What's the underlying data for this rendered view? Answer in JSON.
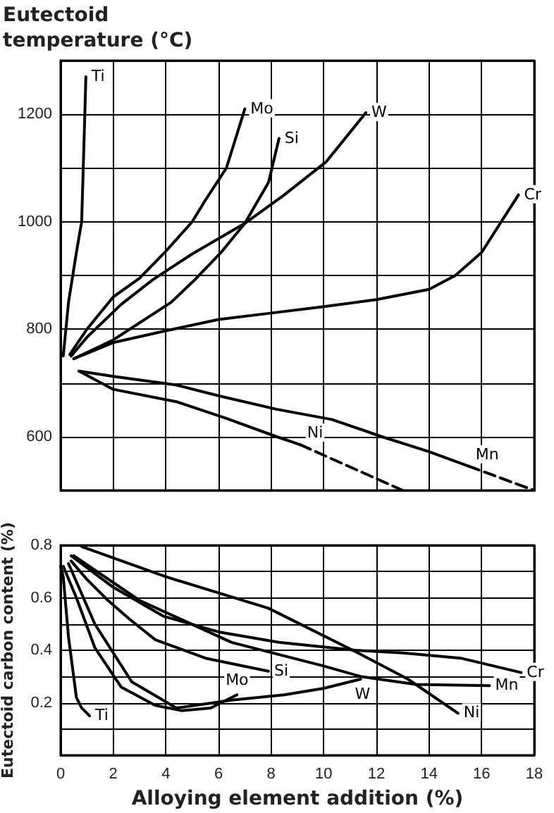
{
  "chart_data": [
    {
      "type": "line",
      "ylabel": "Eutectoid temperature (°C)",
      "xlim": [
        0,
        18
      ],
      "ylim": [
        500,
        1300
      ],
      "xticks": [
        0,
        2,
        4,
        6,
        8,
        10,
        12,
        14,
        16,
        18
      ],
      "yticks": [
        {
          "value": 500,
          "label": null
        },
        600,
        {
          "value": 700,
          "label": null
        },
        800,
        {
          "value": 900,
          "label": null
        },
        1000,
        {
          "value": 1100,
          "label": null
        },
        1200,
        {
          "value": 1300,
          "label": null
        }
      ],
      "grid": true,
      "tick_labels": "y",
      "marker": "none",
      "series": [
        {
          "name": "Ti",
          "color": "#000000",
          "x": [
            0.1,
            0.3,
            0.6,
            0.8,
            0.92,
            0.96
          ],
          "values": [
            750,
            850,
            943,
            1000,
            1200,
            1270
          ]
        },
        {
          "name": "Mo",
          "color": "#000000",
          "x": [
            0.35,
            1,
            2,
            3,
            4,
            5,
            5.5,
            6.3,
            7
          ],
          "values": [
            753,
            800,
            860,
            895,
            945,
            1000,
            1040,
            1100,
            1210
          ]
        },
        {
          "name": "Si",
          "color": "#000000",
          "x": [
            0.5,
            2,
            4.2,
            5.1,
            6.1,
            7,
            7.9,
            8.3
          ],
          "values": [
            745,
            780,
            850,
            892,
            943,
            997,
            1073,
            1155
          ]
        },
        {
          "name": "W",
          "color": "#000000",
          "x": [
            0.4,
            1,
            2.3,
            3.5,
            5,
            7,
            8.5,
            10.1,
            11.6
          ],
          "values": [
            750,
            785,
            846,
            892,
            940,
            997,
            1050,
            1112,
            1203
          ]
        },
        {
          "name": "Cr",
          "color": "#000000",
          "x": [
            0.5,
            2,
            4,
            6,
            8,
            10,
            12,
            14,
            15,
            16,
            17.4
          ],
          "values": [
            745,
            775,
            797,
            818,
            830,
            842,
            855,
            874,
            900,
            943,
            1050
          ]
        },
        {
          "name": "Mn",
          "color": "#000000",
          "x": [
            0.7,
            2,
            4.4,
            6,
            8.2,
            10.3,
            12.2,
            14,
            15.5
          ],
          "values": [
            722,
            712,
            696,
            676,
            651,
            632,
            600,
            572,
            545
          ]
        },
        {
          "color": "#000000",
          "line_style": "dashed",
          "x": [
            15.5,
            18
          ],
          "values": [
            545,
            500
          ]
        },
        {
          "name": "Ni",
          "color": "#000000",
          "x": [
            0.7,
            2,
            4.4,
            6.3,
            8.2,
            9.1
          ],
          "values": [
            722,
            688,
            665,
            634,
            600,
            585
          ]
        },
        {
          "color": "#000000",
          "line_style": "dashed",
          "x": [
            9.1,
            13
          ],
          "values": [
            585,
            500
          ]
        }
      ]
    },
    {
      "type": "line",
      "xlabel": "Alloying element addition (%)",
      "ylabel": "Eutectoid carbon content (%)",
      "xlim": [
        0,
        18
      ],
      "ylim": [
        0,
        0.8
      ],
      "xticks": [
        0,
        2,
        4,
        6,
        8,
        10,
        12,
        14,
        16,
        18
      ],
      "yticks": [
        {
          "value": 0,
          "label": null
        },
        {
          "value": 0.1,
          "label": null
        },
        0.2,
        {
          "value": 0.3,
          "label": null
        },
        0.4,
        {
          "value": 0.5,
          "label": null
        },
        0.6,
        {
          "value": 0.7,
          "label": null
        },
        0.8
      ],
      "grid": true,
      "marker": "none",
      "series": [
        {
          "name": "Ti",
          "color": "#000000",
          "x": [
            0,
            0.1,
            0.3,
            0.6,
            0.8,
            1.1
          ],
          "values": [
            0.72,
            0.68,
            0.45,
            0.22,
            0.18,
            0.15
          ]
        },
        {
          "name": "Mo",
          "color": "#000000",
          "x": [
            0.1,
            0.6,
            1.3,
            2.3,
            3.6,
            4.6,
            5.7,
            6.7
          ],
          "values": [
            0.72,
            0.6,
            0.41,
            0.26,
            0.19,
            0.17,
            0.18,
            0.23
          ]
        },
        {
          "name": "W",
          "color": "#000000",
          "x": [
            0.3,
            1.3,
            2.7,
            4.4,
            6.5,
            8.5,
            10,
            11.4
          ],
          "values": [
            0.73,
            0.5,
            0.28,
            0.18,
            0.21,
            0.23,
            0.255,
            0.29
          ]
        },
        {
          "name": "Si",
          "color": "#000000",
          "x": [
            0.4,
            1,
            1.8,
            2.6,
            3.6,
            5.5,
            7.9
          ],
          "values": [
            0.74,
            0.67,
            0.59,
            0.52,
            0.44,
            0.37,
            0.32
          ]
        },
        {
          "name": "Mn",
          "color": "#000000",
          "x": [
            0.5,
            3,
            6.5,
            10,
            11.4,
            13.5,
            16.3
          ],
          "values": [
            0.76,
            0.59,
            0.43,
            0.34,
            0.3,
            0.27,
            0.265
          ]
        },
        {
          "name": "Cr",
          "color": "#000000",
          "x": [
            0.4,
            2,
            3.9,
            6,
            8.3,
            11.2,
            13,
            15.2,
            17.5
          ],
          "values": [
            0.76,
            0.64,
            0.53,
            0.47,
            0.43,
            0.4,
            0.39,
            0.37,
            0.315
          ]
        },
        {
          "name": "Ni",
          "color": "#000000",
          "x": [
            0.8,
            4,
            7.9,
            11.3,
            13.2,
            15.1
          ],
          "values": [
            0.795,
            0.68,
            0.56,
            0.39,
            0.29,
            0.16
          ]
        }
      ]
    }
  ]
}
